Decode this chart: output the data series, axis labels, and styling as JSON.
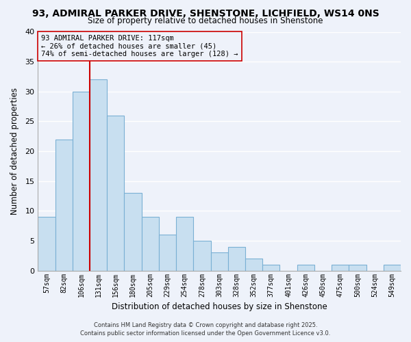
{
  "title": "93, ADMIRAL PARKER DRIVE, SHENSTONE, LICHFIELD, WS14 0NS",
  "subtitle": "Size of property relative to detached houses in Shenstone",
  "xlabel": "Distribution of detached houses by size in Shenstone",
  "ylabel": "Number of detached properties",
  "ylim": [
    0,
    40
  ],
  "yticks": [
    0,
    5,
    10,
    15,
    20,
    25,
    30,
    35,
    40
  ],
  "bar_color": "#c8dff0",
  "bar_edge_color": "#7ab0d4",
  "bg_color": "#eef2fa",
  "grid_color": "#ffffff",
  "vline_color": "#cc0000",
  "annotation_line1": "93 ADMIRAL PARKER DRIVE: 117sqm",
  "annotation_line2": "← 26% of detached houses are smaller (45)",
  "annotation_line3": "74% of semi-detached houses are larger (128) →",
  "footer_line1": "Contains HM Land Registry data © Crown copyright and database right 2025.",
  "footer_line2": "Contains public sector information licensed under the Open Government Licence v3.0.",
  "all_labels": [
    "57sqm",
    "82sqm",
    "106sqm",
    "131sqm",
    "156sqm",
    "180sqm",
    "205sqm",
    "229sqm",
    "254sqm",
    "278sqm",
    "303sqm",
    "328sqm",
    "352sqm",
    "377sqm",
    "401sqm",
    "426sqm",
    "450sqm",
    "475sqm",
    "500sqm",
    "524sqm",
    "549sqm"
  ],
  "all_values": [
    9,
    22,
    30,
    32,
    26,
    13,
    9,
    6,
    9,
    5,
    3,
    4,
    2,
    1,
    0,
    1,
    0,
    1,
    1,
    0,
    1
  ],
  "vline_pos": 2.5
}
